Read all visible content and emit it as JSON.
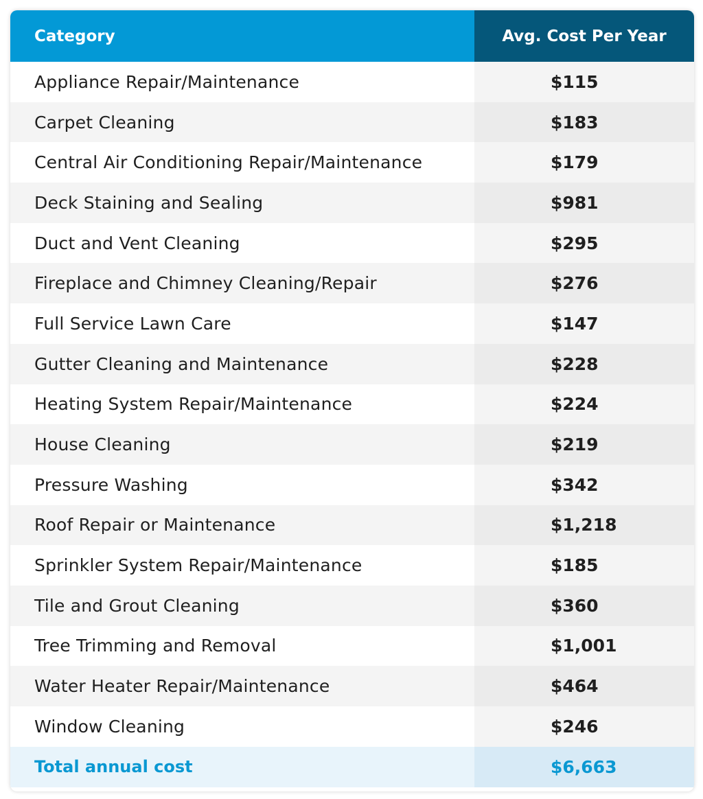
{
  "table": {
    "headers": {
      "category": "Category",
      "cost": "Avg. Cost Per Year"
    },
    "rows": [
      {
        "category": "Appliance Repair/Maintenance",
        "cost": "$115"
      },
      {
        "category": "Carpet Cleaning",
        "cost": "$183"
      },
      {
        "category": "Central Air Conditioning Repair/Maintenance",
        "cost": "$179"
      },
      {
        "category": "Deck Staining and Sealing",
        "cost": "$981"
      },
      {
        "category": "Duct and Vent Cleaning",
        "cost": "$295"
      },
      {
        "category": "Fireplace and Chimney Cleaning/Repair",
        "cost": "$276"
      },
      {
        "category": "Full Service Lawn Care",
        "cost": "$147"
      },
      {
        "category": "Gutter Cleaning and Maintenance",
        "cost": "$228"
      },
      {
        "category": "Heating System Repair/Maintenance",
        "cost": "$224"
      },
      {
        "category": "House Cleaning",
        "cost": "$219"
      },
      {
        "category": "Pressure Washing",
        "cost": "$342"
      },
      {
        "category": "Roof Repair or Maintenance",
        "cost": "$1,218"
      },
      {
        "category": "Sprinkler System Repair/Maintenance",
        "cost": "$185"
      },
      {
        "category": "Tile and Grout Cleaning",
        "cost": "$360"
      },
      {
        "category": "Tree Trimming and Removal",
        "cost": "$1,001"
      },
      {
        "category": "Water Heater Repair/Maintenance",
        "cost": "$464"
      },
      {
        "category": "Window Cleaning",
        "cost": "$246"
      }
    ],
    "total": {
      "label": "Total annual cost",
      "value": "$6,663"
    }
  },
  "colors": {
    "header_primary": "#0399d6",
    "header_secondary": "#05577a",
    "total_text": "#0a98d2",
    "total_background": "#e8f4fb"
  }
}
